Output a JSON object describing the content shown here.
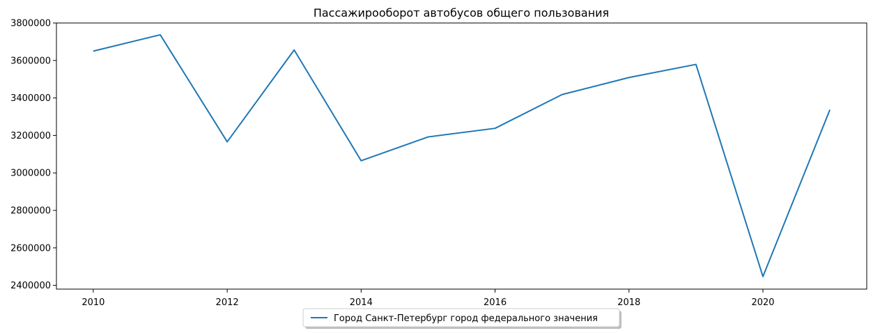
{
  "chart_data": {
    "type": "line",
    "title": "Пассажирооборот автобусов общего пользования",
    "xlabel": "",
    "ylabel": "",
    "x": [
      2010,
      2011,
      2012,
      2013,
      2014,
      2015,
      2016,
      2017,
      2018,
      2019,
      2020,
      2021
    ],
    "series": [
      {
        "name": "Город Санкт-Петербург город федерального значения",
        "color": "#1f77b4",
        "values": [
          3650000,
          3737000,
          3166000,
          3656000,
          3065000,
          3192000,
          3238000,
          3418000,
          3509000,
          3579000,
          2447000,
          3337000
        ]
      }
    ],
    "xlim": [
      2009.45,
      2021.55
    ],
    "ylim": [
      2380000,
      3800000
    ],
    "xticks": [
      2010,
      2012,
      2014,
      2016,
      2018,
      2020
    ],
    "yticks": [
      2400000,
      2600000,
      2800000,
      3000000,
      3200000,
      3400000,
      3600000,
      3800000
    ],
    "xtick_labels": [
      "2010",
      "2012",
      "2014",
      "2016",
      "2018",
      "2020"
    ],
    "ytick_labels": [
      "2400000",
      "2600000",
      "2800000",
      "3000000",
      "3200000",
      "3400000",
      "3600000",
      "3800000"
    ],
    "grid": false,
    "legend_position": "bottom-center"
  }
}
